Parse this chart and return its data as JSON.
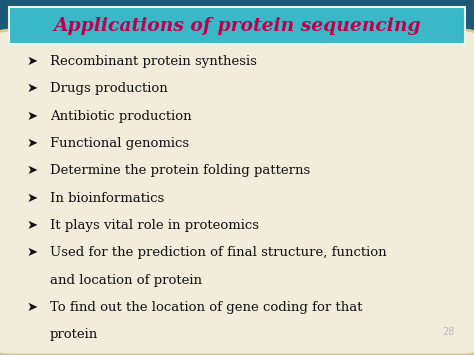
{
  "title": "Applications of protein sequencing",
  "title_color": "#c0004e",
  "title_fontsize": 13.5,
  "title_bg_color": "#3ab8c8",
  "title_border_color": "#e8f8e8",
  "bullet_symbol": "➤",
  "bullet_color": "#111111",
  "bullet_fontsize": 9.5,
  "bullets": [
    "Recombinant protein synthesis",
    "Drugs production",
    "Antibiotic production",
    "Functional genomics",
    "Determine the protein folding patterns",
    "In bioinformatics",
    "It plays vital role in proteomics",
    "Used for the prediction of final structure, function",
    "and location of protein",
    "To find out the location of gene coding for that",
    "protein"
  ],
  "bullet_flags": [
    true,
    true,
    true,
    true,
    true,
    true,
    true,
    true,
    false,
    true,
    false
  ],
  "background_outer_top": "#1a5070",
  "background_outer_bottom": "#0a3050",
  "background_inner": "#f2edda",
  "inner_border_color": "#d4c88a",
  "page_number": "28",
  "page_number_color": "#bbbbbb",
  "page_number_fontsize": 7
}
